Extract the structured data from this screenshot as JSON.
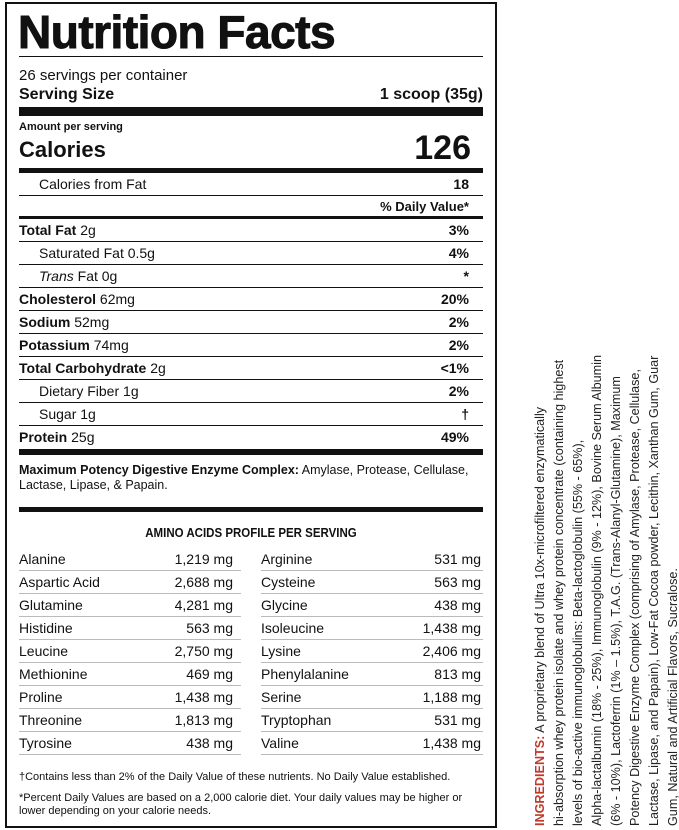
{
  "title": "Nutrition Facts",
  "servings_per_container": "26 servings per container",
  "serving_size": {
    "label": "Serving Size",
    "value": "1 scoop (35g)"
  },
  "amount_per_serving": "Amount per serving",
  "calories": {
    "label": "Calories",
    "value": "126"
  },
  "calories_from_fat": {
    "label": "Calories from Fat",
    "value": "18"
  },
  "daily_value_header": "% Daily Value*",
  "nutrients": [
    {
      "name": "Total Fat",
      "amount": "2g",
      "dv": "3%",
      "bold": true
    },
    {
      "name": "Saturated Fat",
      "amount": "0.5g",
      "dv": "4%",
      "bold": false
    },
    {
      "name": "Trans",
      "name_suffix": "Fat",
      "amount": "0g",
      "dv": "*",
      "bold": false
    },
    {
      "name": "Cholesterol",
      "amount": "62mg",
      "dv": "20%",
      "bold": true
    },
    {
      "name": "Sodium",
      "amount": "52mg",
      "dv": "2%",
      "bold": true
    },
    {
      "name": "Potassium",
      "amount": "74mg",
      "dv": "2%",
      "bold": true
    },
    {
      "name": "Total Carbohydrate",
      "amount": "2g",
      "dv": "<1%",
      "bold": true
    },
    {
      "name": "Dietary Fiber",
      "amount": "1g",
      "dv": "2%",
      "bold": false
    },
    {
      "name": "Sugar",
      "amount": "1g",
      "dv": "†",
      "bold": false
    },
    {
      "name": "Protein",
      "amount": "25g",
      "dv": "49%",
      "bold": true
    }
  ],
  "enzyme": {
    "label": "Maximum Potency Digestive Enzyme Complex:",
    "text": " Amylase, Protease, Cellulase, Lactase, Lipase, & Papain."
  },
  "amino_header": "AMINO ACIDS PROFILE PER SERVING",
  "amino_acids": [
    [
      "Alanine",
      "1,219 mg",
      "Arginine",
      "531 mg"
    ],
    [
      "Aspartic Acid",
      "2,688 mg",
      "Cysteine",
      "563 mg"
    ],
    [
      "Glutamine",
      "4,281 mg",
      "Glycine",
      "438 mg"
    ],
    [
      "Histidine",
      "563 mg",
      "Isoleucine",
      "1,438 mg"
    ],
    [
      "Leucine",
      "2,750 mg",
      "Lysine",
      "2,406 mg"
    ],
    [
      "Methionine",
      "469 mg",
      "Phenylalanine",
      "813 mg"
    ],
    [
      "Proline",
      "1,438 mg",
      "Serine",
      "1,188 mg"
    ],
    [
      "Threonine",
      "1,813 mg",
      "Tryptophan",
      "531 mg"
    ],
    [
      "Tyrosine",
      "438 mg",
      "Valine",
      "1,438 mg"
    ]
  ],
  "footnote_dagger": "†Contains less than 2% of the Daily Value of these nutrients. No Daily Value established.",
  "footnote_percent": "*Percent Daily Values are based on a 2,000 calorie diet. Your daily values may be higher or lower depending on your calorie needs.",
  "ingredients": {
    "label": "INGREDIENTS:",
    "label_color": "#c0392b",
    "lines": [
      " A proprietary blend of Ultra 10x-microfiltered enzymatically",
      "hi-absorption whey protein isolate and whey protein concentrate (containing highest",
      "levels of bio-active immunoglobulins: Beta-lactoglobulin (55% - 65%),",
      "Alpha-lactalbumin (18% - 25%), Immunoglobulin (9% - 12%), Bovine Serum Albumin",
      "(6% - 10%), Lactoferrin (1% – 1.5%), T.A.G. (Trans-Alanyl-Glutamine), Maximum",
      "Potency Digestive Enzyme Complex (comprising of Amylase, Protease, Cellulase,",
      "Lactase, Lipase, and Papain), Low-Fat Cocoa powder, Lecithin, Xanthan Gum, Guar",
      "Gum, Natural and Artificial Flavors, Sucralose."
    ]
  }
}
